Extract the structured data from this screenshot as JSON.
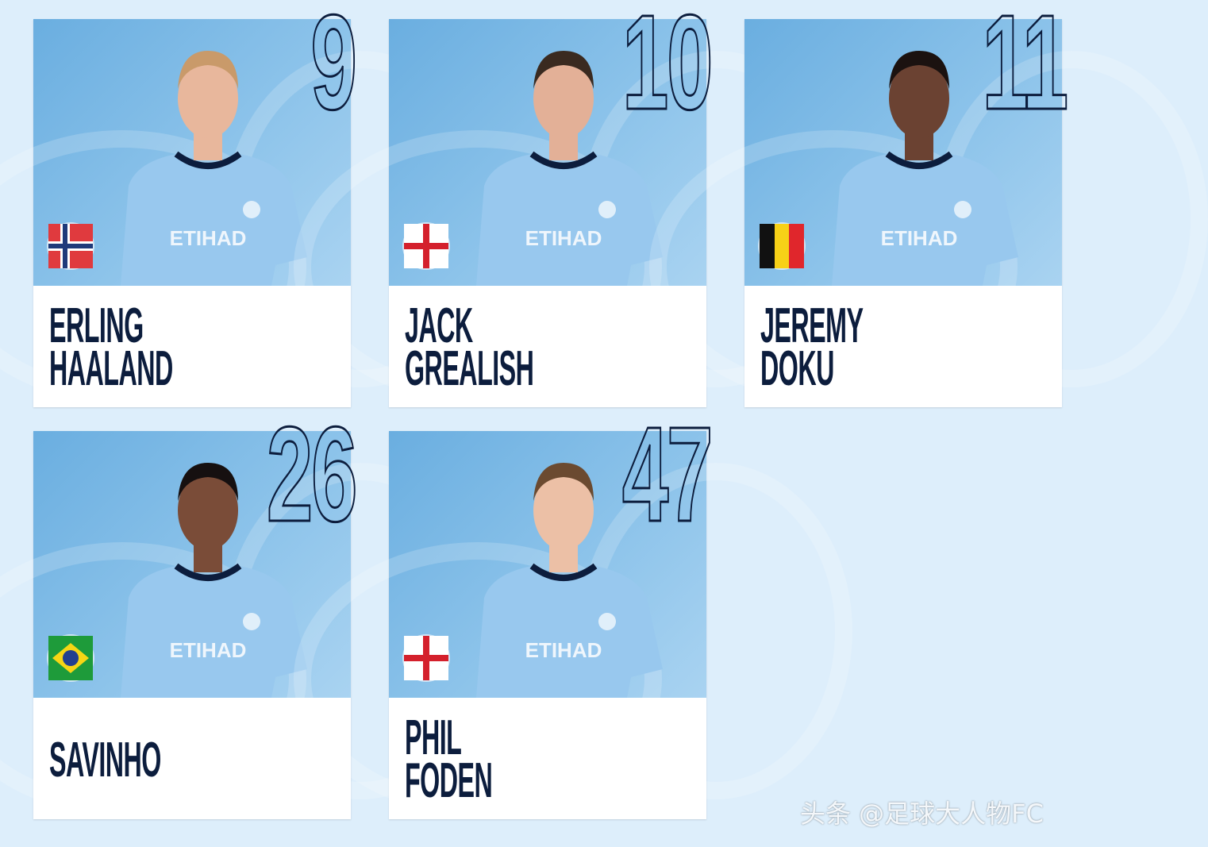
{
  "players": [
    {
      "first": "ERLING",
      "last": "HAALAND",
      "number": "9",
      "flag": "norway",
      "skin": "#e8b79c",
      "hair": "#c99a6a"
    },
    {
      "first": "JACK",
      "last": "GREALISH",
      "number": "10",
      "flag": "england",
      "skin": "#e3b097",
      "hair": "#3a2a20"
    },
    {
      "first": "JEREMY",
      "last": "DOKU",
      "number": "11",
      "flag": "belgium",
      "skin": "#6b4232",
      "hair": "#1b1210"
    },
    {
      "first": "SAVINHO",
      "last": "",
      "number": "26",
      "flag": "brazil",
      "skin": "#7a4c38",
      "hair": "#161010"
    },
    {
      "first": "PHIL",
      "last": "FODEN",
      "number": "47",
      "flag": "england",
      "skin": "#ecc0a6",
      "hair": "#6b4a30"
    }
  ],
  "colors": {
    "background": "#ddeefb",
    "navy": "#0c1d3d",
    "sky": "#8cc3ea",
    "jersey": "#98c8ee"
  },
  "watermark": "头条 @足球大人物FC"
}
